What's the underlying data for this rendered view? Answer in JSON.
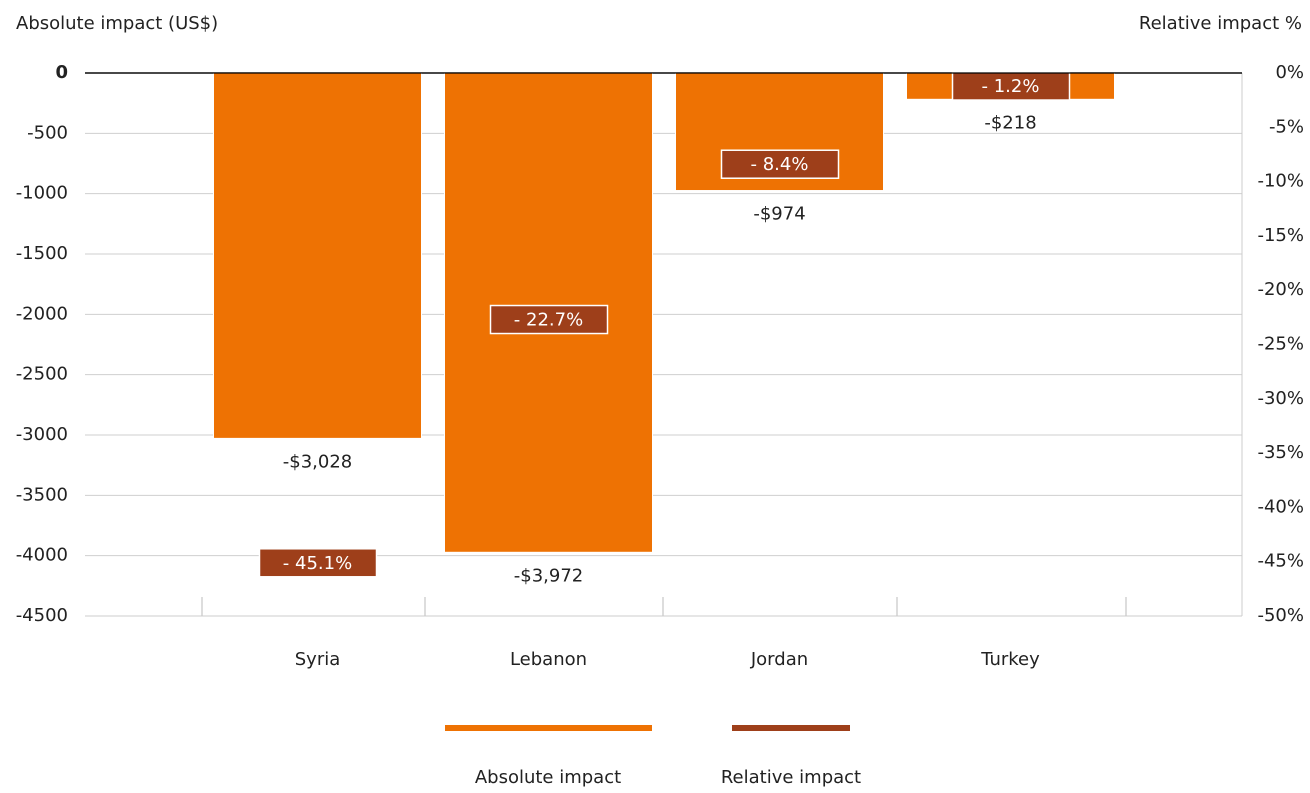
{
  "chart_data": {
    "type": "bar",
    "ylabel": "Absolute impact (US$)",
    "y2label": "Relative impact %",
    "categories": [
      "Syria",
      "Lebanon",
      "Jordan",
      "Turkey"
    ],
    "series": [
      {
        "name": "Absolute impact",
        "color": "#ee7203",
        "values": [
          -3028,
          -3972,
          -974,
          -218
        ],
        "value_labels": [
          "-$3,028",
          "-$3,972",
          "-$974",
          "-$218"
        ]
      },
      {
        "name": "Relative impact",
        "color": "#9e3f1a",
        "axis": "y2",
        "values": [
          -45.1,
          -22.7,
          -8.4,
          -1.2
        ],
        "value_labels": [
          "- 45.1%",
          "- 22.7%",
          "- 8.4%",
          "- 1.2%"
        ]
      }
    ],
    "ylim": [
      -4500,
      0
    ],
    "yticks": [
      0,
      -500,
      -1000,
      -1500,
      -2000,
      -2500,
      -3000,
      -3500,
      -4000,
      -4500
    ],
    "y2lim": [
      -50,
      0
    ],
    "y2ticks": [
      {
        "value": 0,
        "label": "0%"
      },
      {
        "value": -5,
        "label": "-5%"
      },
      {
        "value": -10,
        "label": "-10%"
      },
      {
        "value": -15,
        "label": "-15%"
      },
      {
        "value": -20,
        "label": "-20%"
      },
      {
        "value": -25,
        "label": "-25%"
      },
      {
        "value": -30,
        "label": "-30%"
      },
      {
        "value": -35,
        "label": "-35%"
      },
      {
        "value": -40,
        "label": "-40%"
      },
      {
        "value": -45,
        "label": "-45%"
      },
      {
        "value": -50,
        "label": "-50%"
      }
    ],
    "grid": true
  }
}
